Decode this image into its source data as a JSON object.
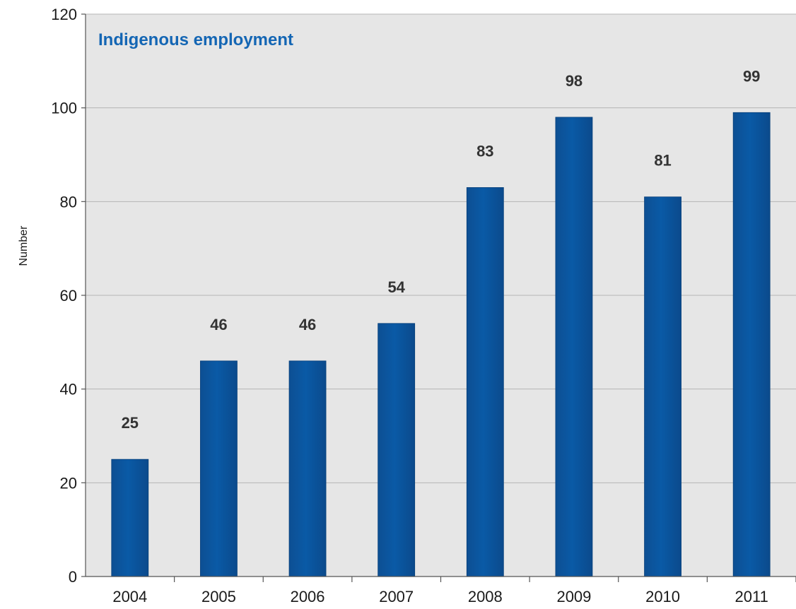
{
  "chart_data": {
    "type": "bar",
    "title": "Indigenous employment",
    "xlabel": "",
    "ylabel": "Number",
    "categories": [
      "2004",
      "2005",
      "2006",
      "2007",
      "2008",
      "2009",
      "2010",
      "2011"
    ],
    "values": [
      25,
      46,
      46,
      54,
      83,
      98,
      81,
      99
    ],
    "data_labels": [
      "25",
      "46",
      "46",
      "54",
      "83",
      "98",
      "81",
      "99"
    ],
    "ylim": [
      0,
      120
    ],
    "yticks": [
      0,
      20,
      40,
      60,
      80,
      100,
      120
    ],
    "ytick_labels": [
      "0",
      "20",
      "40",
      "60",
      "80",
      "100",
      "120"
    ],
    "grid": true,
    "legend": "none",
    "colors": {
      "bar": "#0a5aa6",
      "bar_edge": "#063f7a",
      "plot_background": "#e6e6e6",
      "gridline": "#b5b5b5",
      "title": "#1466b4",
      "last_label": "#163e6e"
    }
  }
}
